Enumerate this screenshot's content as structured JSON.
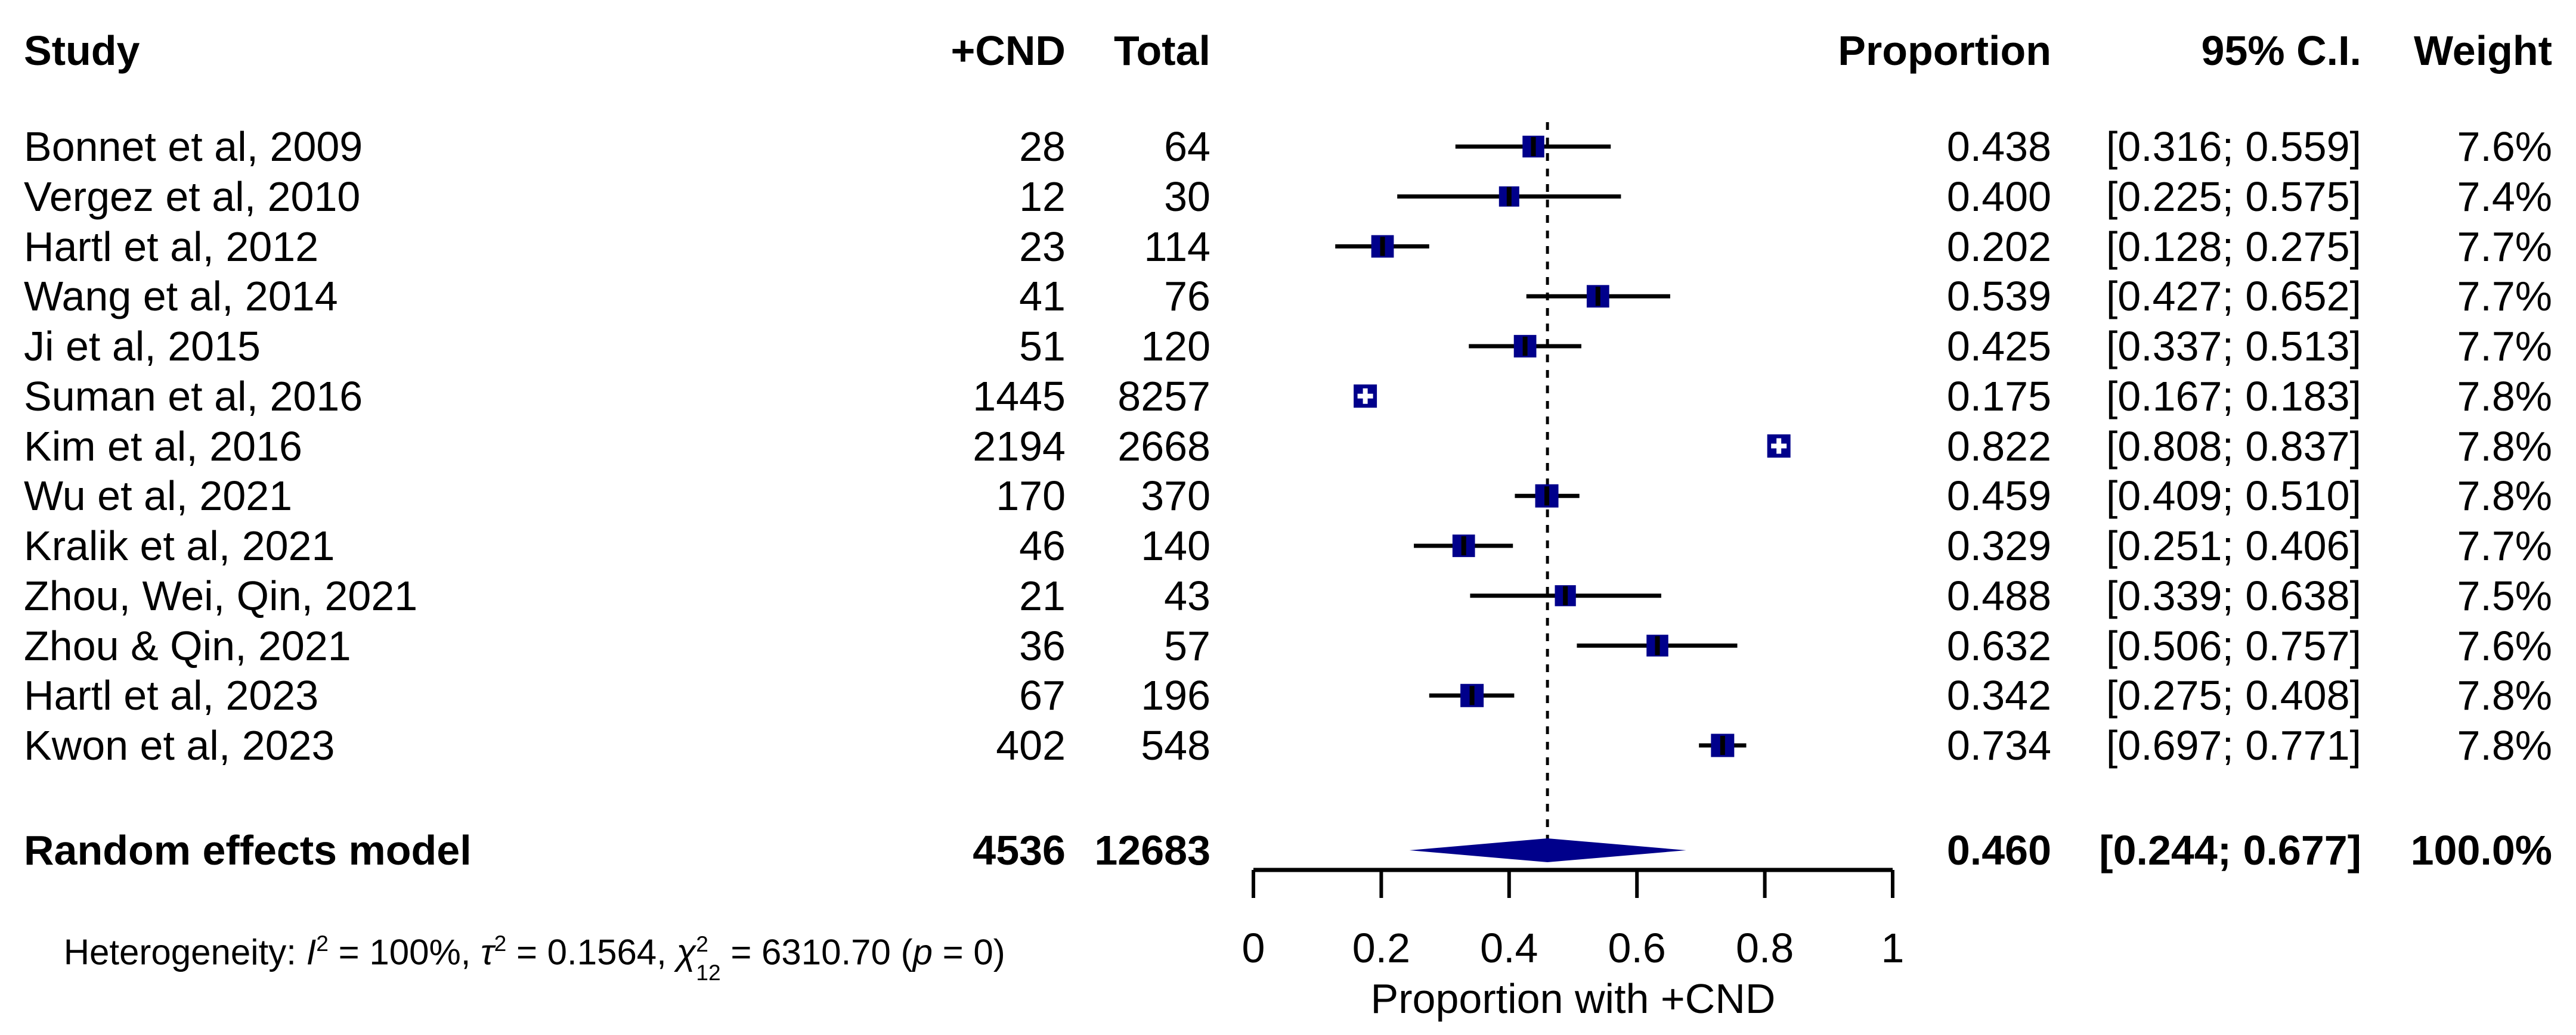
{
  "colors": {
    "marker": "#00008B",
    "line": "#000000",
    "text": "#000000",
    "background": "#ffffff"
  },
  "header": {
    "study": "Study",
    "cnd": "+CND",
    "total": "Total",
    "proportion": "Proportion",
    "ci": "95% C.I.",
    "weight": "Weight"
  },
  "chart_data": {
    "type": "forest",
    "title": "",
    "xlabel": "Proportion with +CND",
    "xlim": [
      0,
      1
    ],
    "tick_values": [
      0,
      0.2,
      0.4,
      0.6,
      0.8,
      1
    ],
    "tick_labels": [
      "0",
      "0.2",
      "0.4",
      "0.6",
      "0.8",
      "1"
    ],
    "dashed_line_x": 0.46,
    "grid": false,
    "studies": [
      {
        "name": "Bonnet et al, 2009",
        "cnd": "28",
        "total": "64",
        "est": 0.438,
        "lo": 0.316,
        "hi": 0.559,
        "proportion": "0.438",
        "ci": "[0.316; 0.559]",
        "weight": "7.6%",
        "marker": "square-tick"
      },
      {
        "name": "Vergez et al, 2010",
        "cnd": "12",
        "total": "30",
        "est": 0.4,
        "lo": 0.225,
        "hi": 0.575,
        "proportion": "0.400",
        "ci": "[0.225; 0.575]",
        "weight": "7.4%",
        "marker": "square-tick"
      },
      {
        "name": "Hartl et al, 2012",
        "cnd": "23",
        "total": "114",
        "est": 0.202,
        "lo": 0.128,
        "hi": 0.275,
        "proportion": "0.202",
        "ci": "[0.128; 0.275]",
        "weight": "7.7%",
        "marker": "square-tick"
      },
      {
        "name": "Wang et al, 2014",
        "cnd": "41",
        "total": "76",
        "est": 0.539,
        "lo": 0.427,
        "hi": 0.652,
        "proportion": "0.539",
        "ci": "[0.427; 0.652]",
        "weight": "7.7%",
        "marker": "square-tick"
      },
      {
        "name": "Ji et al, 2015",
        "cnd": "51",
        "total": "120",
        "est": 0.425,
        "lo": 0.337,
        "hi": 0.513,
        "proportion": "0.425",
        "ci": "[0.337; 0.513]",
        "weight": "7.7%",
        "marker": "square-tick"
      },
      {
        "name": "Suman et al, 2016",
        "cnd": "1445",
        "total": "8257",
        "est": 0.175,
        "lo": 0.167,
        "hi": 0.183,
        "proportion": "0.175",
        "ci": "[0.167; 0.183]",
        "weight": "7.8%",
        "marker": "square-plus"
      },
      {
        "name": "Kim et al, 2016",
        "cnd": "2194",
        "total": "2668",
        "est": 0.822,
        "lo": 0.808,
        "hi": 0.837,
        "proportion": "0.822",
        "ci": "[0.808; 0.837]",
        "weight": "7.8%",
        "marker": "square-plus"
      },
      {
        "name": "Wu et al, 2021",
        "cnd": "170",
        "total": "370",
        "est": 0.459,
        "lo": 0.409,
        "hi": 0.51,
        "proportion": "0.459",
        "ci": "[0.409; 0.510]",
        "weight": "7.8%",
        "marker": "square-tick"
      },
      {
        "name": "Kralik et al, 2021",
        "cnd": "46",
        "total": "140",
        "est": 0.329,
        "lo": 0.251,
        "hi": 0.406,
        "proportion": "0.329",
        "ci": "[0.251; 0.406]",
        "weight": "7.7%",
        "marker": "square-tick"
      },
      {
        "name": "Zhou, Wei, Qin, 2021",
        "cnd": "21",
        "total": "43",
        "est": 0.488,
        "lo": 0.339,
        "hi": 0.638,
        "proportion": "0.488",
        "ci": "[0.339; 0.638]",
        "weight": "7.5%",
        "marker": "square-tick"
      },
      {
        "name": "Zhou & Qin, 2021",
        "cnd": "36",
        "total": "57",
        "est": 0.632,
        "lo": 0.506,
        "hi": 0.757,
        "proportion": "0.632",
        "ci": "[0.506; 0.757]",
        "weight": "7.6%",
        "marker": "square-tick"
      },
      {
        "name": "Hartl et al, 2023",
        "cnd": "67",
        "total": "196",
        "est": 0.342,
        "lo": 0.275,
        "hi": 0.408,
        "proportion": "0.342",
        "ci": "[0.275; 0.408]",
        "weight": "7.8%",
        "marker": "square-tick"
      },
      {
        "name": "Kwon et al, 2023",
        "cnd": "402",
        "total": "548",
        "est": 0.734,
        "lo": 0.697,
        "hi": 0.771,
        "proportion": "0.734",
        "ci": "[0.697; 0.771]",
        "weight": "7.8%",
        "marker": "square-tick"
      }
    ],
    "summary": {
      "name": "Random effects model",
      "cnd": "4536",
      "total": "12683",
      "est": 0.46,
      "lo": 0.244,
      "hi": 0.677,
      "proportion": "0.460",
      "ci": "[0.244; 0.677]",
      "weight": "100.0%"
    }
  },
  "heterogeneity": {
    "prefix": "Heterogeneity: ",
    "i_sym": "I",
    "i_sup": "2",
    "i_eq": " = 100%, ",
    "tau_sym": "τ",
    "tau_sup": "2",
    "tau_eq": " = 0.1564, ",
    "chi_sym": "χ",
    "chi_sup": "2",
    "chi_sub": "12",
    "chi_eq": " = 6310.70 ",
    "p_open": "(",
    "p_sym": "p",
    "p_close": " = 0)"
  }
}
